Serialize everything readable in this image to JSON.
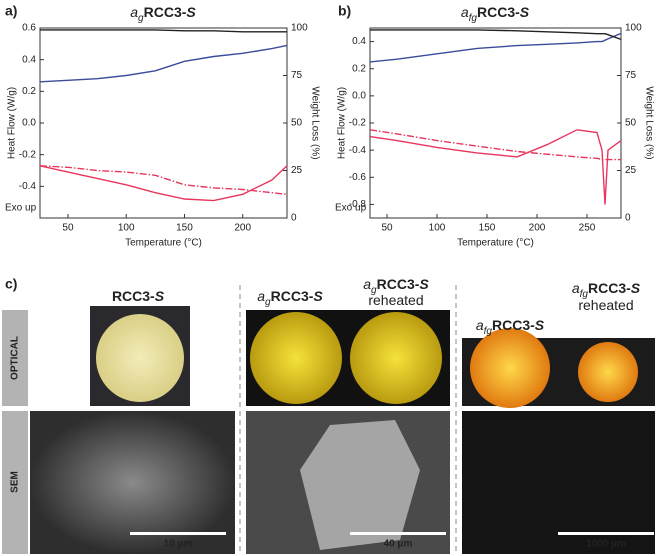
{
  "chart_data": [
    {
      "type": "line",
      "panel_label": "a)",
      "title": [
        {
          "text": "a",
          "style": "italic"
        },
        {
          "text": "g",
          "style": "sub"
        },
        {
          "text": "RCC3-",
          "style": "bold"
        },
        {
          "text": "S",
          "style": "bold-italic"
        }
      ],
      "x_label": "Temperature (°C)",
      "y_label": "Heat Flow (W/g)",
      "y2_label": "Weight Loss (%)",
      "annotation": "Exo up",
      "x": [
        26,
        50,
        75,
        100,
        125,
        150,
        175,
        200,
        225,
        238
      ],
      "xlim": [
        26,
        238
      ],
      "xticks": [
        50,
        100,
        150,
        200
      ],
      "ylim": [
        -0.6,
        0.6
      ],
      "yticks": [
        -0.4,
        -0.2,
        {
          "value": 0,
          "label": "0.0"
        },
        0.2,
        0.4,
        0.6
      ],
      "y2lim": [
        0,
        100
      ],
      "y2ticks": [
        0,
        25,
        50,
        75,
        100
      ],
      "series": [
        {
          "color": "#3b4c9b",
          "style": "solid",
          "values": [
            0.26,
            0.27,
            0.28,
            0.3,
            0.33,
            0.39,
            0.42,
            0.44,
            0.47,
            0.49
          ]
        },
        {
          "color": "#222222",
          "style": "solid",
          "axis": "y2",
          "values": [
            99,
            99,
            99,
            99,
            99,
            98.5,
            98.5,
            98,
            98,
            98
          ]
        },
        {
          "color": "#e8365d",
          "style": "solid",
          "values": [
            -0.27,
            -0.31,
            -0.35,
            -0.39,
            -0.44,
            -0.48,
            -0.49,
            -0.45,
            -0.36,
            -0.27
          ]
        },
        {
          "color": "#e8365d",
          "style": "dashdot",
          "values": [
            -0.27,
            -0.28,
            -0.3,
            -0.31,
            -0.33,
            -0.39,
            -0.41,
            -0.42,
            -0.44,
            -0.45
          ]
        }
      ]
    },
    {
      "type": "line",
      "panel_label": "b)",
      "title": [
        {
          "text": "a",
          "style": "italic"
        },
        {
          "text": "fg",
          "style": "sub"
        },
        {
          "text": "RCC3-",
          "style": "bold"
        },
        {
          "text": "S",
          "style": "bold-italic"
        }
      ],
      "x_label": "Temperature (°C)",
      "y_label": "Heat Flow (W/g)",
      "y2_label": "Weight Loss (%)",
      "annotation": "Exo up",
      "x": [
        33,
        60,
        100,
        140,
        180,
        210,
        240,
        260,
        265,
        268,
        271,
        284
      ],
      "xlim": [
        33,
        284
      ],
      "xticks": [
        50,
        100,
        150,
        200,
        250
      ],
      "ylim": [
        -0.9,
        0.5
      ],
      "yticks": [
        -0.8,
        -0.6,
        -0.4,
        -0.2,
        {
          "value": 0,
          "label": "0.0"
        },
        0.2,
        0.4
      ],
      "y2lim": [
        0,
        100
      ],
      "y2ticks": [
        0,
        25,
        50,
        75,
        100
      ],
      "series": [
        {
          "color": "#3b4c9b",
          "style": "solid",
          "values": [
            0.25,
            0.27,
            0.31,
            0.35,
            0.37,
            0.38,
            0.39,
            0.4,
            0.4,
            0.41,
            0.42,
            0.46
          ]
        },
        {
          "color": "#222222",
          "style": "solid",
          "axis": "y2",
          "values": [
            99,
            99,
            99,
            99,
            98.5,
            98,
            97.5,
            97,
            97,
            97,
            96.5,
            94
          ]
        },
        {
          "color": "#e8365d",
          "style": "solid",
          "values": [
            -0.3,
            -0.33,
            -0.38,
            -0.42,
            -0.45,
            -0.36,
            -0.25,
            -0.27,
            -0.4,
            -0.8,
            -0.4,
            -0.33
          ]
        },
        {
          "color": "#e8365d",
          "style": "dashdot",
          "values": [
            -0.25,
            -0.28,
            -0.33,
            -0.37,
            -0.41,
            -0.43,
            -0.45,
            -0.46,
            -0.47,
            -0.47,
            -0.47,
            -0.47
          ]
        }
      ]
    }
  ],
  "photo_panel": {
    "label": "c)",
    "rows": [
      "OPTICAL",
      "SEM"
    ],
    "headers": [
      [
        [
          {
            "text": "RCC3-",
            "style": "bold"
          },
          {
            "text": "S",
            "style": "bold-italic"
          }
        ]
      ],
      [
        [
          {
            "text": "a",
            "style": "italic"
          },
          {
            "text": "g",
            "style": "sub"
          },
          {
            "text": "RCC3-",
            "style": "bold"
          },
          {
            "text": "S",
            "style": "bold-italic"
          }
        ]
      ],
      [
        [
          {
            "text": "a",
            "style": "italic"
          },
          {
            "text": "g",
            "style": "sub"
          },
          {
            "text": "RCC3-",
            "style": "bold"
          },
          {
            "text": "S",
            "style": "bold-italic"
          }
        ],
        [
          {
            "text": "reheated",
            "style": "normal"
          }
        ]
      ],
      [
        [
          {
            "text": "a",
            "style": "italic"
          },
          {
            "text": "fg",
            "style": "sub"
          },
          {
            "text": "RCC3-",
            "style": "bold"
          },
          {
            "text": "S",
            "style": "bold-italic"
          }
        ]
      ],
      [
        [
          {
            "text": "a",
            "style": "italic"
          },
          {
            "text": "fg",
            "style": "sub"
          },
          {
            "text": "RCC3-",
            "style": "bold"
          },
          {
            "text": "S",
            "style": "bold-italic"
          }
        ],
        [
          {
            "text": "reheated",
            "style": "normal"
          }
        ]
      ]
    ],
    "scale_bars": [
      "10 μm",
      "40 μm",
      "1000 μm"
    ]
  }
}
